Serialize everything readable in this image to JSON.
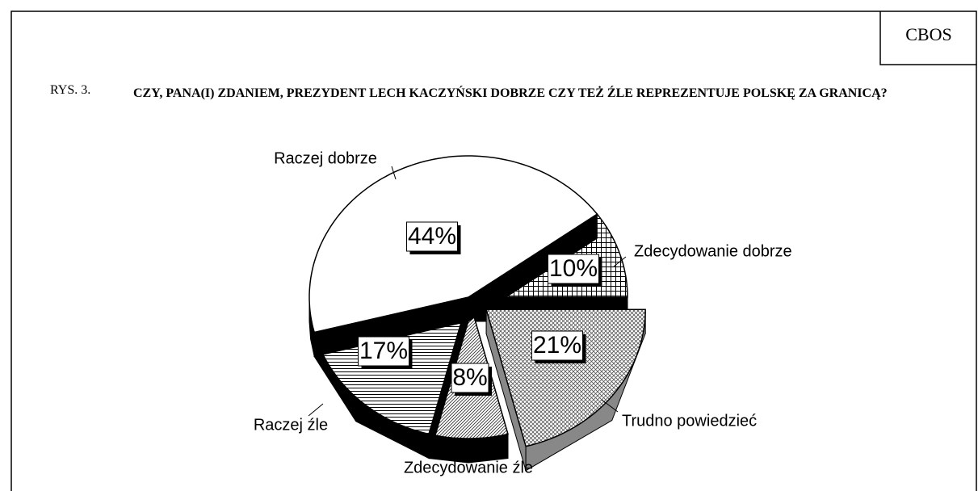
{
  "source": "CBOS",
  "figure": "RYS. 3.",
  "chart_data": {
    "type": "pie",
    "title": "CZY, PANA(I) ZDANIEM, PREZYDENT LECH KACZYŃSKI DOBRZE CZY TEŻ ŹLE REPREZENTUJE POLSKĘ ZA GRANICĄ?",
    "categories": [
      "Zdecydowanie dobrze",
      "Trudno powiedzieć",
      "Zdecydowanie źle",
      "Raczej źle",
      "Raczej dobrze"
    ],
    "values": [
      10,
      21,
      8,
      17,
      44
    ],
    "value_labels": [
      "10%",
      "21%",
      "8%",
      "17%",
      "44%"
    ]
  }
}
